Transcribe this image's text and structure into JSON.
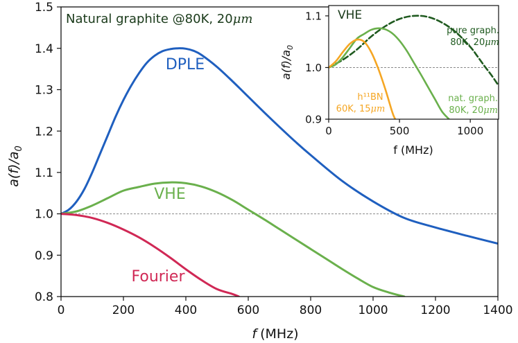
{
  "chart_data": [
    {
      "type": "line",
      "title": "",
      "xlabel_italic": "f",
      "xlabel_unit": "(MHz)",
      "ylabel_parts": [
        "a(f)/a",
        "0"
      ],
      "xlim": [
        0,
        1400
      ],
      "ylim": [
        0.8,
        1.5
      ],
      "xticks": [
        0,
        200,
        400,
        600,
        800,
        1000,
        1200,
        1400
      ],
      "yticks": [
        0.8,
        0.9,
        1.0,
        1.1,
        1.2,
        1.3,
        1.4,
        1.5
      ],
      "reference_line": 1.0,
      "annotations": {
        "sample_prefix": "Natural graphite @80K, 20",
        "sample_unit": "μm"
      },
      "series": [
        {
          "name": "DPLE",
          "color": "#1f5fbf",
          "x": [
            0,
            25,
            50,
            75,
            100,
            125,
            150,
            175,
            200,
            225,
            250,
            275,
            300,
            325,
            350,
            375,
            400,
            425,
            450,
            500,
            550,
            600,
            650,
            700,
            750,
            800,
            900,
            1000,
            1100,
            1200,
            1300,
            1400
          ],
          "y": [
            1.0,
            1.01,
            1.03,
            1.06,
            1.1,
            1.145,
            1.19,
            1.235,
            1.275,
            1.31,
            1.34,
            1.365,
            1.382,
            1.393,
            1.398,
            1.4,
            1.399,
            1.394,
            1.384,
            1.355,
            1.32,
            1.283,
            1.246,
            1.21,
            1.175,
            1.142,
            1.08,
            1.03,
            0.99,
            0.967,
            0.947,
            0.928
          ]
        },
        {
          "name": "VHE",
          "color": "#6ab04c",
          "x": [
            0,
            50,
            100,
            150,
            200,
            250,
            300,
            350,
            400,
            450,
            500,
            550,
            600,
            650,
            700,
            750,
            800,
            850,
            900,
            950,
            1000,
            1050,
            1100
          ],
          "y": [
            1.0,
            1.006,
            1.02,
            1.038,
            1.056,
            1.065,
            1.073,
            1.076,
            1.074,
            1.066,
            1.052,
            1.033,
            1.01,
            0.987,
            0.963,
            0.939,
            0.915,
            0.891,
            0.867,
            0.844,
            0.823,
            0.81,
            0.8
          ]
        },
        {
          "name": "Fourier",
          "color": "#d02855",
          "x": [
            0,
            50,
            100,
            150,
            200,
            250,
            300,
            350,
            400,
            450,
            500,
            550,
            570
          ],
          "y": [
            1.0,
            0.997,
            0.99,
            0.978,
            0.962,
            0.943,
            0.92,
            0.894,
            0.866,
            0.84,
            0.818,
            0.806,
            0.8
          ]
        }
      ]
    },
    {
      "type": "line",
      "title": "inset",
      "xlabel": "f (MHz)",
      "ylabel_parts": [
        "a(f)/a",
        "0"
      ],
      "xlim": [
        0,
        1200
      ],
      "ylim": [
        0.9,
        1.12
      ],
      "xticks": [
        0,
        500,
        1000
      ],
      "yticks": [
        0.9,
        1.0,
        1.1
      ],
      "reference_line": 1.0,
      "title_label": "VHE",
      "series": [
        {
          "name": "pure graph.",
          "label_lines": [
            "pure graph.",
            "80K, 20"
          ],
          "label_unit": "μm",
          "color": "#1f5a1f",
          "dashed": true,
          "x": [
            0,
            100,
            200,
            300,
            400,
            500,
            600,
            700,
            800,
            900,
            1000,
            1050,
            1100,
            1150,
            1200
          ],
          "y": [
            1.0,
            1.015,
            1.035,
            1.06,
            1.08,
            1.094,
            1.1,
            1.098,
            1.087,
            1.068,
            1.04,
            1.022,
            1.003,
            0.985,
            0.965
          ]
        },
        {
          "name": "nat. graph.",
          "label_lines": [
            "nat. graph.",
            "80K, 20"
          ],
          "label_unit": "μm",
          "color": "#6ab04c",
          "dashed": false,
          "x": [
            0,
            50,
            100,
            150,
            200,
            250,
            300,
            350,
            400,
            450,
            500,
            550,
            600,
            650,
            700,
            750,
            800,
            850
          ],
          "y": [
            1.0,
            1.006,
            1.02,
            1.038,
            1.056,
            1.065,
            1.073,
            1.076,
            1.074,
            1.066,
            1.052,
            1.033,
            1.01,
            0.987,
            0.963,
            0.939,
            0.915,
            0.9
          ]
        },
        {
          "name": "h11BN",
          "label_lines": [
            "h¹¹BN",
            "60K, 15"
          ],
          "label_unit": "μm",
          "color": "#f5a623",
          "dashed": false,
          "x": [
            0,
            50,
            100,
            150,
            200,
            250,
            300,
            350,
            400,
            450,
            470
          ],
          "y": [
            1.0,
            1.012,
            1.03,
            1.046,
            1.054,
            1.05,
            1.03,
            0.998,
            0.958,
            0.913,
            0.9
          ]
        }
      ]
    }
  ]
}
